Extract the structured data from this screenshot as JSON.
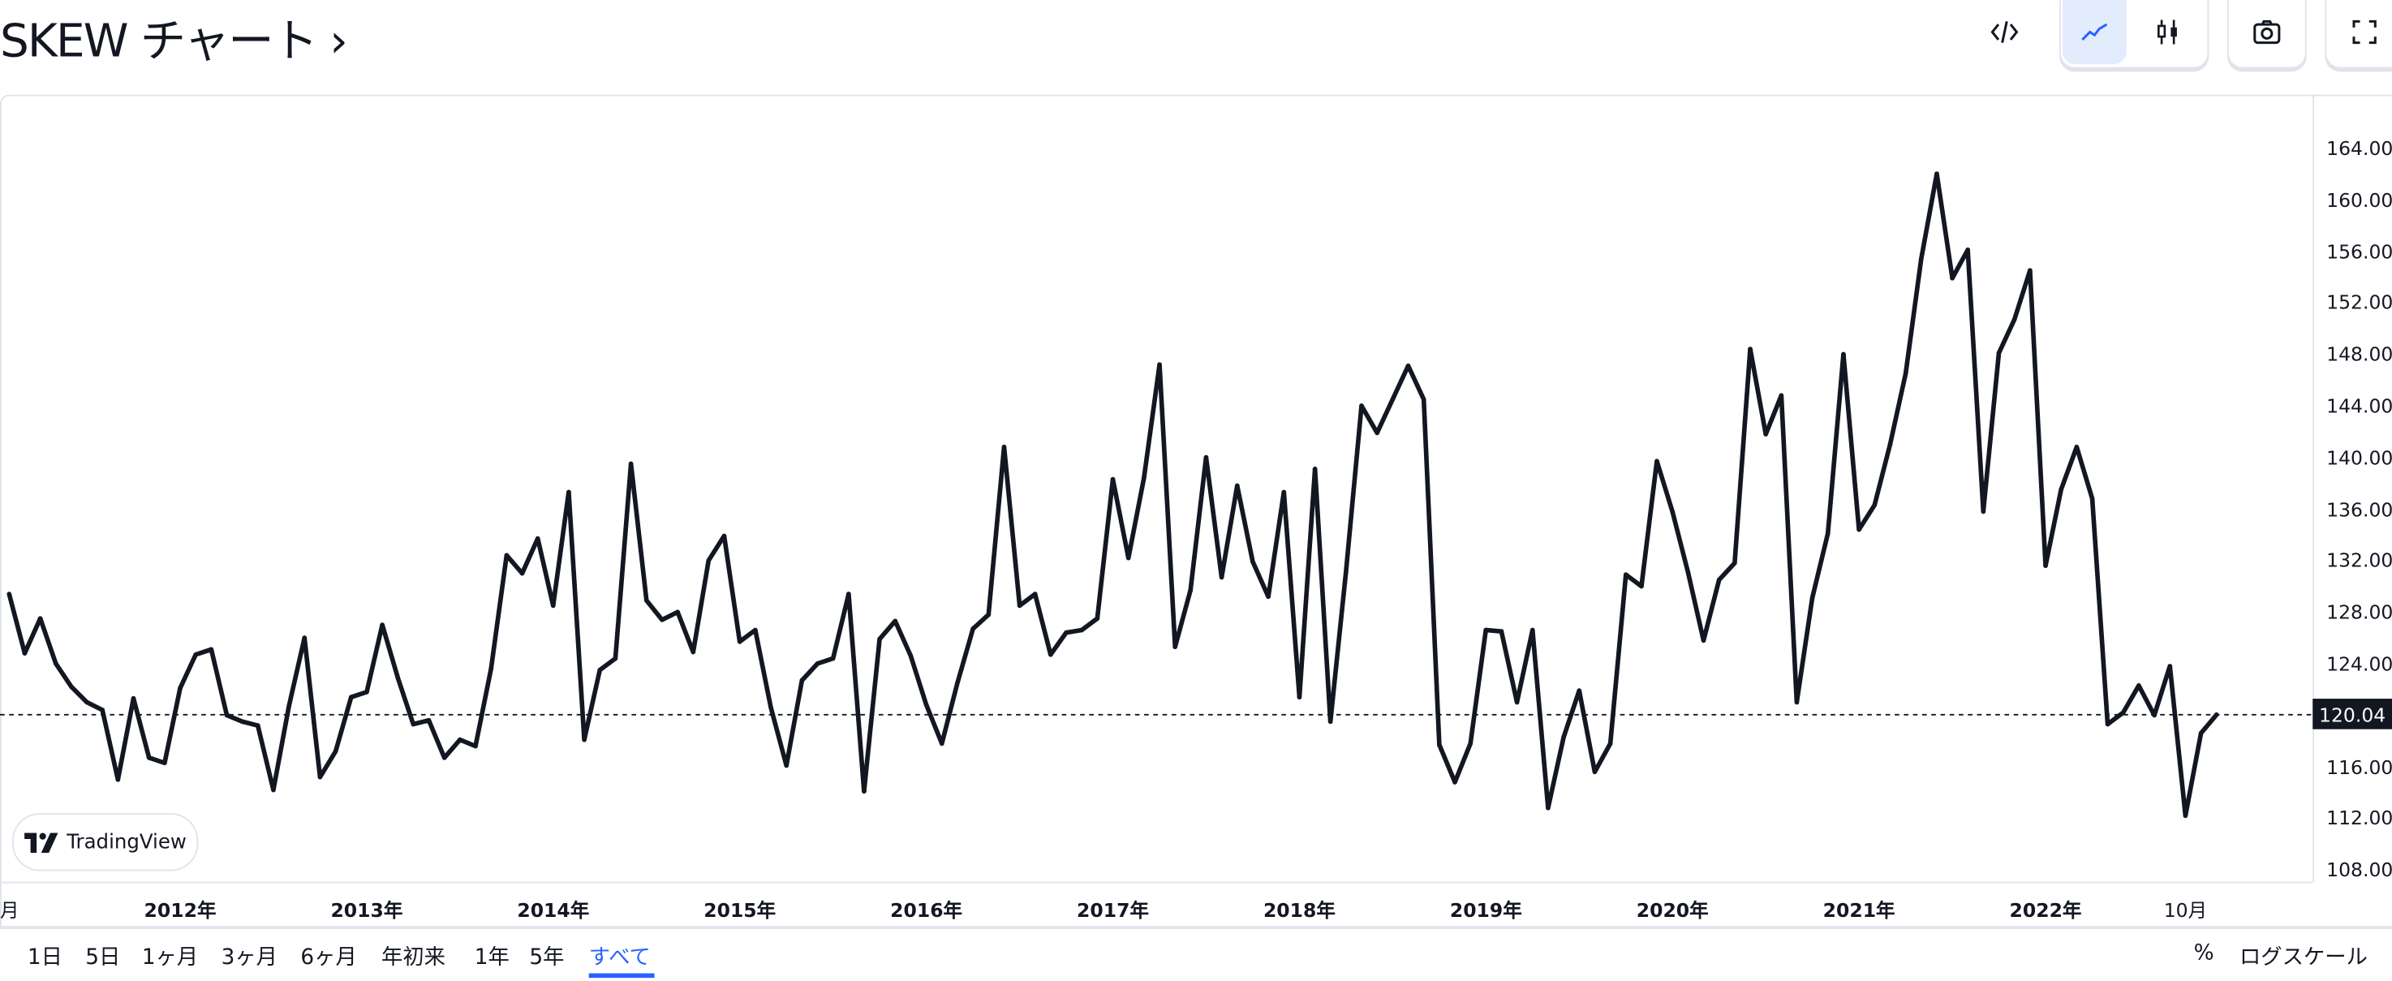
{
  "header": {
    "title": "SKEW チャート ›"
  },
  "toolbar": {
    "embed_icon": "code-icon",
    "line_icon": "line-chart-icon",
    "candle_icon": "candlestick-icon",
    "camera_icon": "camera-icon",
    "fullscreen_icon": "fullscreen-icon",
    "active_color": "#2962ff"
  },
  "logo": {
    "text": "TradingView"
  },
  "range_buttons": [
    {
      "label": "1日"
    },
    {
      "label": "5日"
    },
    {
      "label": "1ヶ月"
    },
    {
      "label": "3ヶ月"
    },
    {
      "label": "6ヶ月"
    },
    {
      "label": "年初来"
    },
    {
      "label": "1年"
    },
    {
      "label": "5年"
    },
    {
      "label": "すべて",
      "selected": true
    }
  ],
  "bottom_right": {
    "percent": "%",
    "log_scale": "ログスケール"
  },
  "chart_data": {
    "type": "line",
    "interval": "monthly",
    "x_start": "2011-02",
    "line_color": "#131722",
    "ylim": [
      108,
      164
    ],
    "y_ticks": [
      "164.00",
      "160.00",
      "156.00",
      "152.00",
      "148.00",
      "144.00",
      "140.00",
      "136.00",
      "132.00",
      "128.00",
      "124.00",
      "116.00",
      "112.00",
      "108.00"
    ],
    "y_tick_values": [
      164,
      160,
      156,
      152,
      148,
      144,
      140,
      136,
      132,
      128,
      124,
      116,
      112,
      108
    ],
    "current_value": 120.04,
    "current_label": "120.04",
    "x_ticks": [
      {
        "label": "月",
        "month": "2011-02"
      },
      {
        "label": "2012年",
        "month": "2012-01"
      },
      {
        "label": "2013年",
        "month": "2013-01"
      },
      {
        "label": "2014年",
        "month": "2014-01"
      },
      {
        "label": "2015年",
        "month": "2015-01"
      },
      {
        "label": "2016年",
        "month": "2016-01"
      },
      {
        "label": "2017年",
        "month": "2017-01"
      },
      {
        "label": "2018年",
        "month": "2018-01"
      },
      {
        "label": "2019年",
        "month": "2019-01"
      },
      {
        "label": "2020年",
        "month": "2020-01"
      },
      {
        "label": "2021年",
        "month": "2021-01"
      },
      {
        "label": "2022年",
        "month": "2022-01"
      },
      {
        "label": "10月",
        "month": "2022-10"
      }
    ],
    "values": [
      129.4,
      124.8,
      127.5,
      124.0,
      122.2,
      121.0,
      120.4,
      115.0,
      121.3,
      116.7,
      116.3,
      122.1,
      124.7,
      125.1,
      120.0,
      119.5,
      119.2,
      114.2,
      120.7,
      126.0,
      115.2,
      117.2,
      121.4,
      121.8,
      127.0,
      122.9,
      119.3,
      119.6,
      116.7,
      118.1,
      117.6,
      123.6,
      132.4,
      131.0,
      133.7,
      128.5,
      137.3,
      118.1,
      123.5,
      124.4,
      139.5,
      128.9,
      127.4,
      128.0,
      124.9,
      132.0,
      133.9,
      125.7,
      126.6,
      120.6,
      116.1,
      122.7,
      124.0,
      124.4,
      129.4,
      114.1,
      125.9,
      127.3,
      124.6,
      120.8,
      117.8,
      122.5,
      126.7,
      127.8,
      140.8,
      128.5,
      129.4,
      124.7,
      126.4,
      126.6,
      127.5,
      138.3,
      132.2,
      138.4,
      147.2,
      125.3,
      129.7,
      140.0,
      130.7,
      137.8,
      131.9,
      129.2,
      137.3,
      121.4,
      139.1,
      119.5,
      131.1,
      144.0,
      141.9,
      144.5,
      147.1,
      144.5,
      117.7,
      114.8,
      117.8,
      126.6,
      126.5,
      121.0,
      126.6,
      112.8,
      118.3,
      121.9,
      115.6,
      117.8,
      130.9,
      130.0,
      139.7,
      135.8,
      131.1,
      125.8,
      130.5,
      131.8,
      148.4,
      141.8,
      144.8,
      121.0,
      129.1,
      134.1,
      148.0,
      134.4,
      136.3,
      141.0,
      146.5,
      155.4,
      162.0,
      153.9,
      156.1,
      135.8,
      148.1,
      150.7,
      154.5,
      131.6,
      137.5,
      140.8,
      136.8,
      119.3,
      120.2,
      122.3,
      120.0,
      123.8,
      112.2,
      118.6,
      120.04
    ]
  }
}
